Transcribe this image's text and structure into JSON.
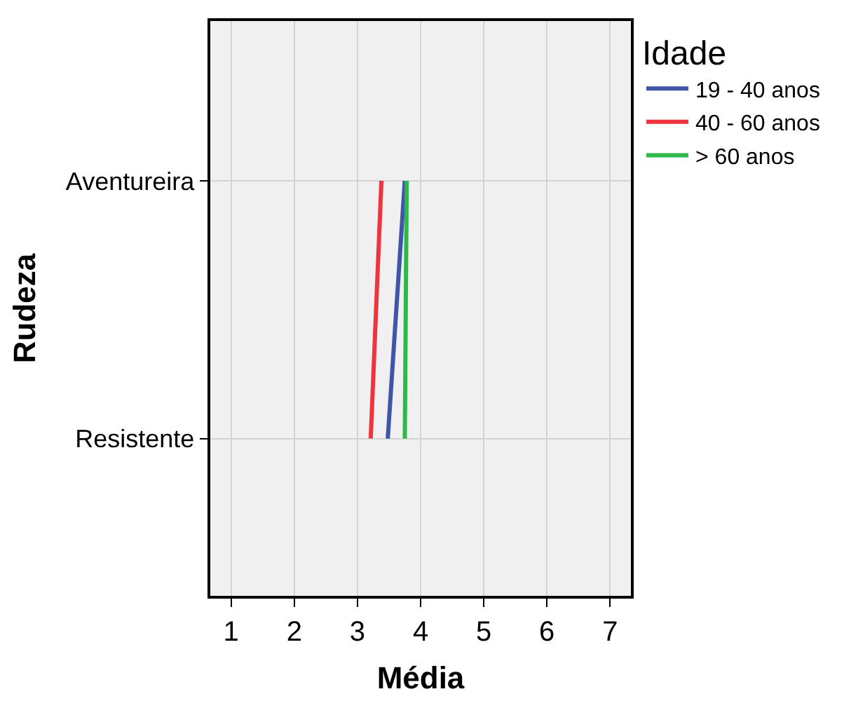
{
  "chart_data": {
    "type": "line",
    "orientation": "horizontal",
    "categories": [
      "Aventureira",
      "Resistente"
    ],
    "xlabel": "Média",
    "ylabel": "Rudeza",
    "legend_title": "Idade",
    "legend": "top right",
    "grid": true,
    "marker": "none",
    "line_style": "solid",
    "xlim": [
      0.67,
      7.33
    ],
    "xticks": [
      1,
      2,
      3,
      4,
      5,
      6,
      7
    ],
    "series": [
      {
        "name": "19 - 40 anos",
        "color": "#3f55a8",
        "values": [
          3.75,
          3.48
        ]
      },
      {
        "name": "40 - 60 anos",
        "color": "#f0343c",
        "values": [
          3.38,
          3.21
        ]
      },
      {
        "name": "> 60 anos",
        "color": "#2db84a",
        "values": [
          3.78,
          3.75
        ]
      }
    ]
  }
}
